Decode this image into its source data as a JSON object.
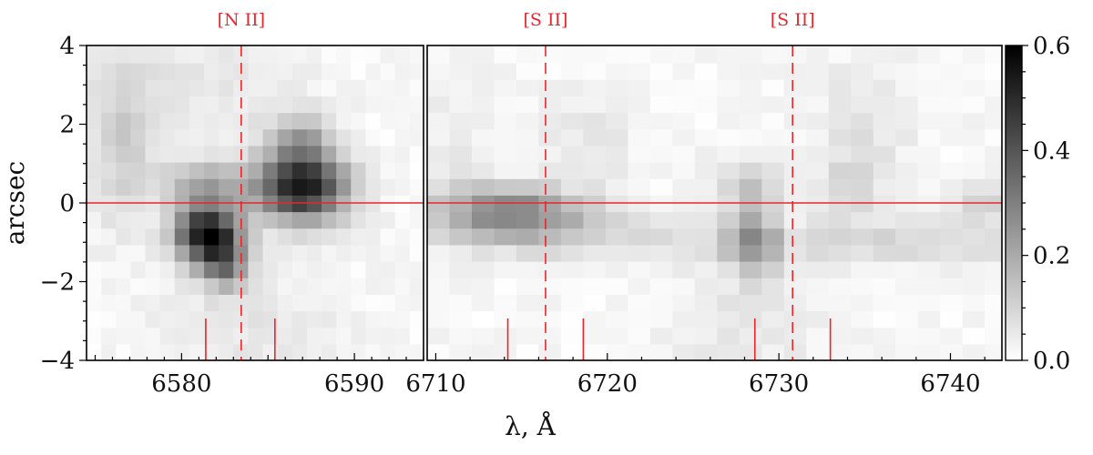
{
  "chart_data": [
    {
      "type": "heatmap",
      "panel": "left",
      "xlabel": "λ, Å",
      "ylabel": "arcsec",
      "xlim": [
        6574.5,
        6594.0
      ],
      "ylim": [
        -4,
        4
      ],
      "xticks": [
        6580,
        6590
      ],
      "xtick_labels": [
        "6580",
        "6590"
      ],
      "yticks": [
        -4,
        -2,
        0,
        2,
        4
      ],
      "ytick_labels": [
        "−4",
        "−2",
        "0",
        "2",
        "4"
      ],
      "colormap": "gray_r",
      "cell_width": 0.85,
      "cell_height": 0.42,
      "hline_y": 0,
      "line_markers": [
        {
          "label": "[N II]",
          "x": 6583.45,
          "style": "dashed"
        }
      ],
      "short_markers": [
        6581.4,
        6585.4
      ],
      "blobs": [
        {
          "x": 6581.5,
          "y": -0.8,
          "sx": 1.3,
          "sy": 0.5,
          "value": 0.56
        },
        {
          "x": 6582.5,
          "y": -1.6,
          "sx": 0.9,
          "sy": 0.45,
          "value": 0.24
        },
        {
          "x": 6587.0,
          "y": 0.4,
          "sx": 1.8,
          "sy": 0.6,
          "value": 0.52
        },
        {
          "x": 6586.8,
          "y": 1.6,
          "sx": 1.3,
          "sy": 0.5,
          "value": 0.18
        },
        {
          "x": 6581.5,
          "y": 0.4,
          "sx": 1.8,
          "sy": 0.45,
          "value": 0.18
        },
        {
          "x": 6576.5,
          "y": 1.5,
          "sx": 1.2,
          "sy": 1.5,
          "value": 0.09
        },
        {
          "x": 6580.5,
          "y": 2.8,
          "sx": 4.0,
          "sy": 1.3,
          "value": 0.04
        },
        {
          "x": 6584.0,
          "y": -3.0,
          "sx": 3.5,
          "sy": 1.0,
          "value": 0.04
        }
      ]
    },
    {
      "type": "heatmap",
      "panel": "right",
      "xlim": [
        6709.5,
        6743.0
      ],
      "ylim": [
        -4,
        4
      ],
      "xticks": [
        6710,
        6720,
        6730,
        6740
      ],
      "xtick_labels": [
        "6710",
        "6720",
        "6730",
        "6740"
      ],
      "colormap": "gray_r",
      "cell_width": 1.3,
      "cell_height": 0.42,
      "hline_y": 0,
      "line_markers": [
        {
          "label": "[S II]",
          "x": 6716.4,
          "style": "dashed"
        },
        {
          "label": "[S II]",
          "x": 6730.8,
          "style": "dashed"
        }
      ],
      "short_markers": [
        6714.2,
        6718.6,
        6728.6,
        6733.0
      ],
      "blobs": [
        {
          "x": 6714.5,
          "y": -0.4,
          "sx": 3.5,
          "sy": 0.45,
          "value": 0.23
        },
        {
          "x": 6714.0,
          "y": 0.1,
          "sx": 2.5,
          "sy": 0.35,
          "value": 0.1
        },
        {
          "x": 6728.5,
          "y": -0.9,
          "sx": 1.0,
          "sy": 0.6,
          "value": 0.22
        },
        {
          "x": 6728.2,
          "y": 0.5,
          "sx": 1.3,
          "sy": 0.45,
          "value": 0.1
        },
        {
          "x": 6738.0,
          "y": -1.0,
          "sx": 6.0,
          "sy": 0.4,
          "value": 0.07
        },
        {
          "x": 6742.0,
          "y": 0.0,
          "sx": 1.2,
          "sy": 0.3,
          "value": 0.1
        },
        {
          "x": 6722.0,
          "y": -1.0,
          "sx": 6.0,
          "sy": 0.4,
          "value": 0.05
        },
        {
          "x": 6734.8,
          "y": 1.6,
          "sx": 2.0,
          "sy": 1.4,
          "value": 0.05
        },
        {
          "x": 6734.0,
          "y": 0.4,
          "sx": 1.2,
          "sy": 0.5,
          "value": 0.06
        },
        {
          "x": 6719.0,
          "y": 1.6,
          "sx": 2.0,
          "sy": 0.9,
          "value": 0.04
        },
        {
          "x": 6728.0,
          "y": -3.0,
          "sx": 3.0,
          "sy": 1.2,
          "value": 0.04
        },
        {
          "x": 6711.0,
          "y": 1.5,
          "sx": 1.5,
          "sy": 1.2,
          "value": 0.03
        }
      ]
    },
    {
      "type": "colorbar",
      "range": [
        0.0,
        0.6
      ],
      "ticks": [
        0.0,
        0.2,
        0.4,
        0.6
      ],
      "tick_labels": [
        "0.0",
        "0.2",
        "0.4",
        "0.6"
      ]
    }
  ]
}
